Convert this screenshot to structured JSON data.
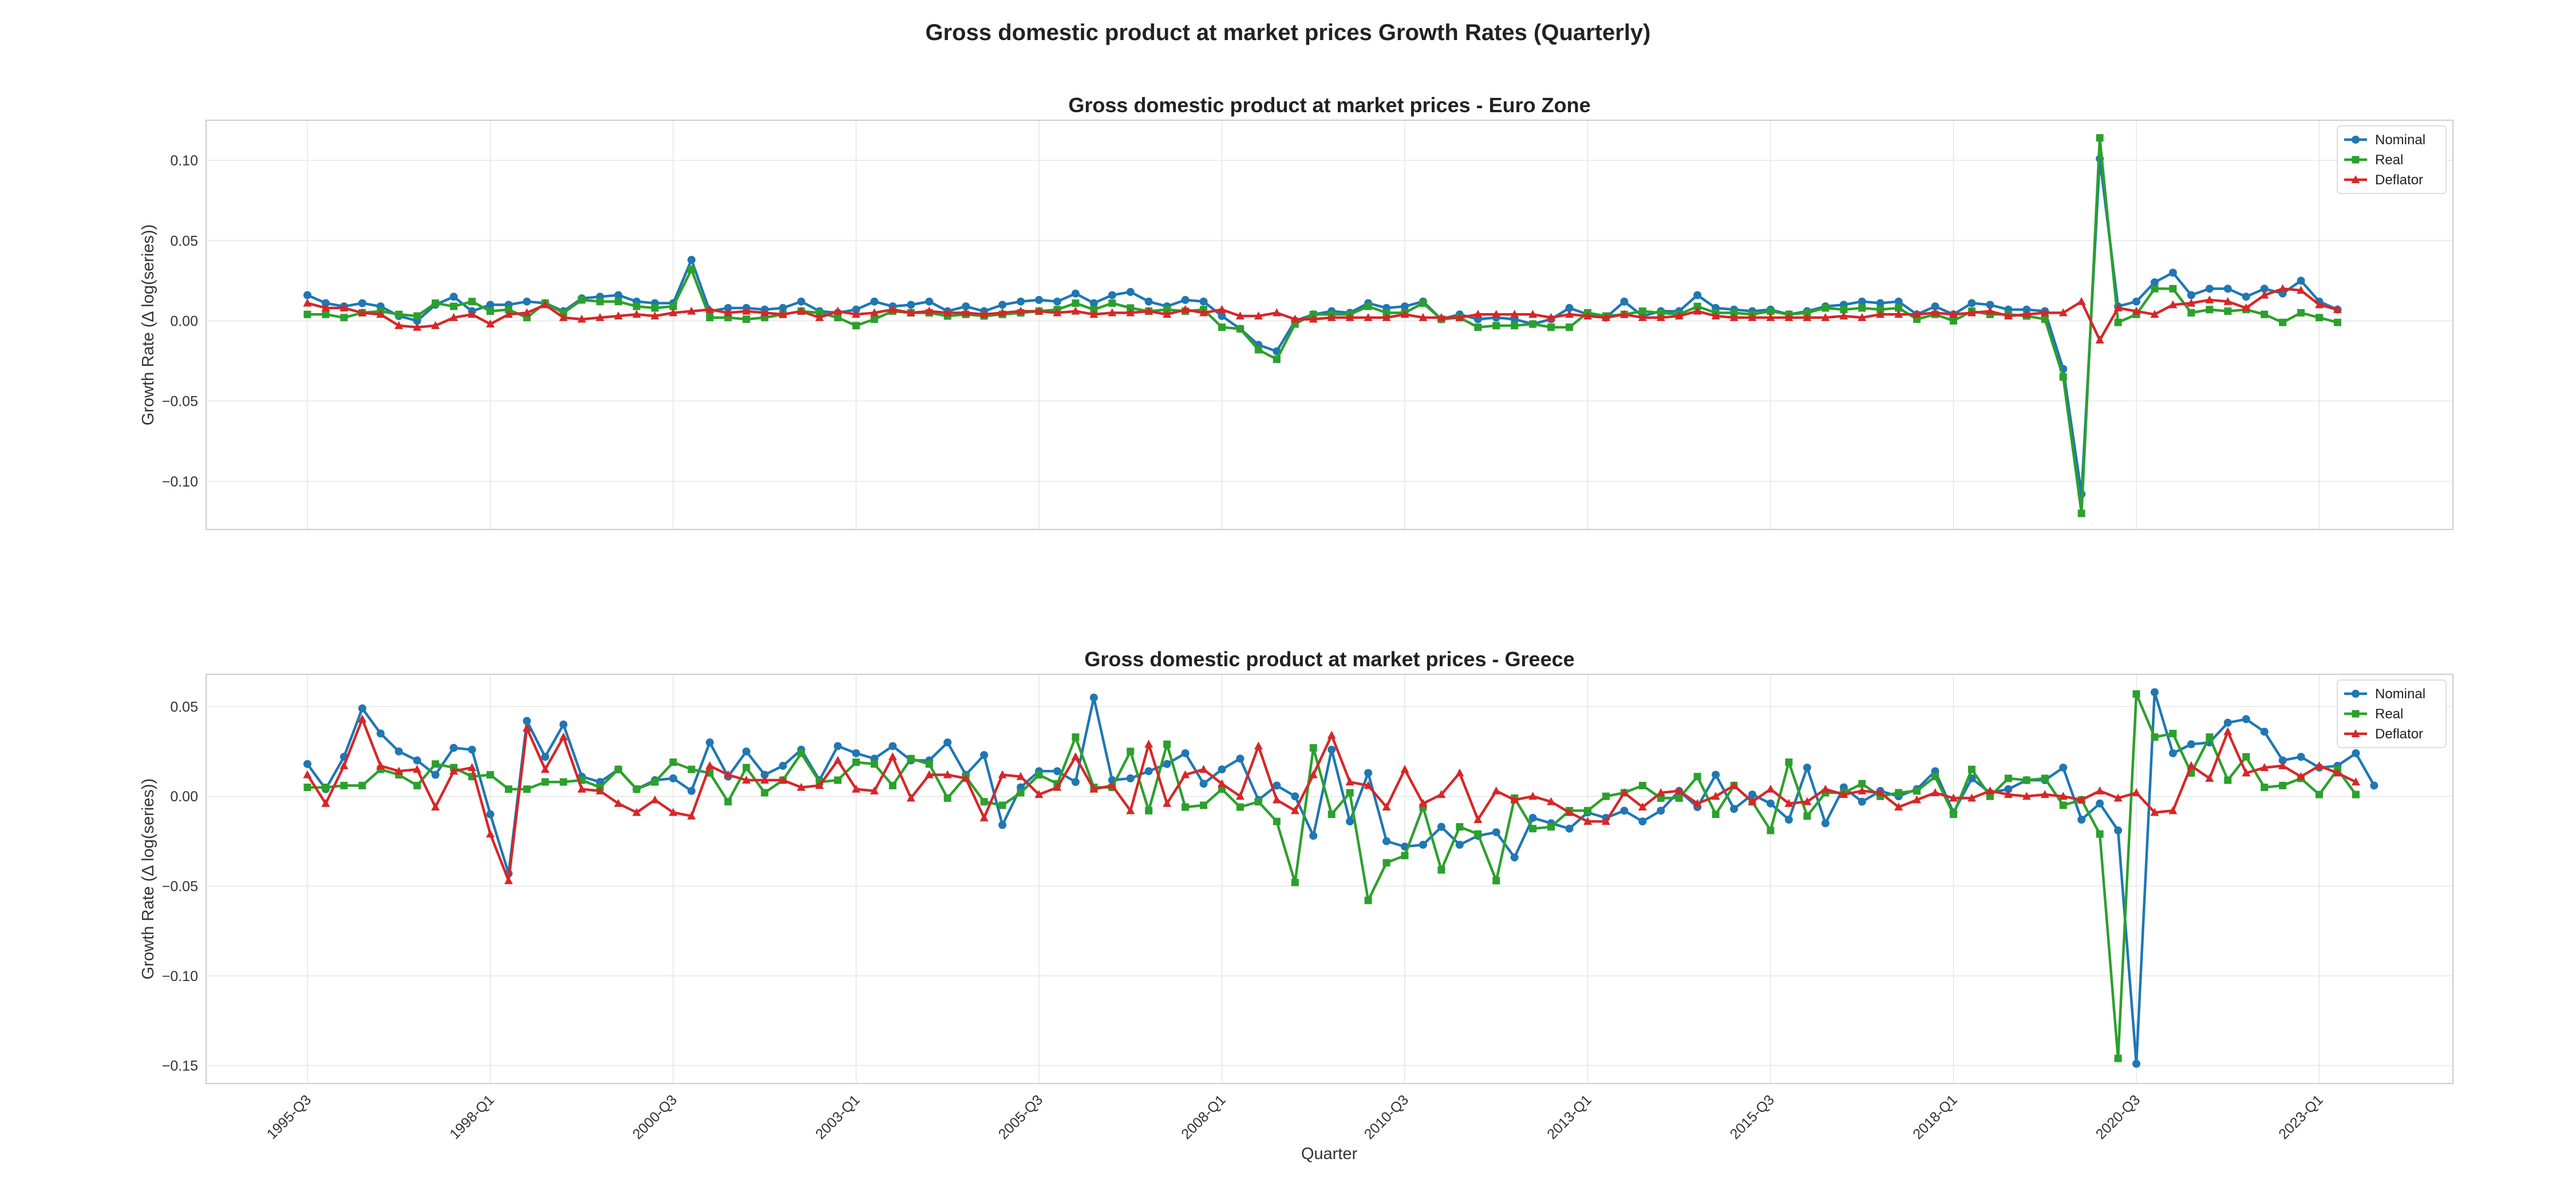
{
  "figure": {
    "title": "Gross domestic product at market prices Growth Rates (Quarterly)",
    "xlabel": "Quarter"
  },
  "colors": {
    "Nominal": "#1f77b4",
    "Real": "#2ca02c",
    "Deflator": "#d62728"
  },
  "chart_data": [
    {
      "type": "line",
      "title": "Gross domestic product at market prices - Euro Zone",
      "xlabel": "",
      "ylabel": "Growth Rate (Δ log(series))",
      "x_start": "1995-Q3",
      "x_tick_labels": [
        "1995-Q3",
        "1998-Q1",
        "2000-Q3",
        "2003-Q1",
        "2005-Q3",
        "2008-Q1",
        "2010-Q3",
        "2013-Q1",
        "2015-Q3",
        "2018-Q1",
        "2020-Q3",
        "2023-Q1"
      ],
      "ylim": [
        -0.13,
        0.125
      ],
      "y_ticks": [
        -0.1,
        -0.05,
        0.0,
        0.05,
        0.1
      ],
      "y_tick_labels": [
        "−0.10",
        "−0.05",
        "0.00",
        "0.05",
        "0.10"
      ],
      "grid": true,
      "legend": "top-right",
      "series": [
        {
          "name": "Nominal",
          "marker": "circle",
          "values": [
            0.016,
            0.011,
            0.009,
            0.011,
            0.009,
            0.003,
            0.0,
            0.01,
            0.015,
            0.006,
            0.01,
            0.01,
            0.012,
            0.011,
            0.006,
            0.014,
            0.015,
            0.016,
            0.012,
            0.011,
            0.011,
            0.038,
            0.006,
            0.008,
            0.008,
            0.007,
            0.008,
            0.012,
            0.006,
            0.005,
            0.007,
            0.012,
            0.009,
            0.01,
            0.012,
            0.006,
            0.009,
            0.006,
            0.01,
            0.012,
            0.013,
            0.012,
            0.017,
            0.011,
            0.016,
            0.018,
            0.012,
            0.009,
            0.013,
            0.012,
            0.003,
            -0.005,
            -0.015,
            -0.019,
            0.0,
            0.004,
            0.006,
            0.005,
            0.011,
            0.008,
            0.009,
            0.012,
            0.001,
            0.004,
            0.001,
            0.002,
            0.001,
            -0.002,
            0.001,
            0.008,
            0.004,
            0.002,
            0.012,
            0.003,
            0.006,
            0.006,
            0.016,
            0.008,
            0.007,
            0.006,
            0.007,
            0.004,
            0.006,
            0.009,
            0.01,
            0.012,
            0.011,
            0.012,
            0.004,
            0.009,
            0.004,
            0.011,
            0.01,
            0.007,
            0.007,
            0.006,
            -0.03,
            -0.108,
            0.101,
            0.009,
            0.012,
            0.024,
            0.03,
            0.016,
            0.02,
            0.02,
            0.015,
            0.02,
            0.017,
            0.025,
            0.012,
            0.007
          ]
        },
        {
          "name": "Real",
          "marker": "square",
          "values": [
            0.004,
            0.004,
            0.002,
            0.005,
            0.006,
            0.004,
            0.003,
            0.011,
            0.009,
            0.012,
            0.006,
            0.007,
            0.002,
            0.011,
            0.005,
            0.013,
            0.012,
            0.012,
            0.009,
            0.008,
            0.009,
            0.032,
            0.002,
            0.002,
            0.001,
            0.002,
            0.004,
            0.006,
            0.005,
            0.002,
            -0.003,
            0.001,
            0.006,
            0.005,
            0.005,
            0.003,
            0.004,
            0.003,
            0.004,
            0.005,
            0.006,
            0.007,
            0.011,
            0.007,
            0.011,
            0.008,
            0.006,
            0.007,
            0.006,
            0.007,
            -0.004,
            -0.005,
            -0.018,
            -0.024,
            -0.002,
            0.004,
            0.004,
            0.004,
            0.009,
            0.005,
            0.005,
            0.011,
            0.001,
            0.002,
            -0.004,
            -0.003,
            -0.003,
            -0.002,
            -0.004,
            -0.004,
            0.005,
            0.003,
            0.004,
            0.006,
            0.005,
            0.004,
            0.009,
            0.005,
            0.005,
            0.004,
            0.006,
            0.004,
            0.005,
            0.008,
            0.007,
            0.008,
            0.007,
            0.008,
            0.001,
            0.004,
            0.0,
            0.006,
            0.004,
            0.004,
            0.003,
            0.001,
            -0.035,
            -0.12,
            0.114,
            -0.001,
            0.004,
            0.02,
            0.02,
            0.005,
            0.007,
            0.006,
            0.007,
            0.004,
            -0.001,
            0.005,
            0.002,
            -0.001
          ]
        },
        {
          "name": "Deflator",
          "marker": "triangle",
          "values": [
            0.011,
            0.008,
            0.008,
            0.005,
            0.004,
            -0.003,
            -0.004,
            -0.003,
            0.002,
            0.004,
            -0.002,
            0.004,
            0.005,
            0.01,
            0.002,
            0.001,
            0.002,
            0.003,
            0.004,
            0.003,
            0.005,
            0.006,
            0.007,
            0.005,
            0.006,
            0.005,
            0.004,
            0.006,
            0.002,
            0.006,
            0.004,
            0.005,
            0.007,
            0.005,
            0.006,
            0.005,
            0.005,
            0.004,
            0.005,
            0.006,
            0.006,
            0.005,
            0.006,
            0.004,
            0.005,
            0.005,
            0.006,
            0.004,
            0.007,
            0.005,
            0.007,
            0.003,
            0.003,
            0.005,
            0.001,
            0.001,
            0.002,
            0.002,
            0.002,
            0.002,
            0.004,
            0.002,
            0.002,
            0.002,
            0.004,
            0.004,
            0.004,
            0.004,
            0.002,
            0.004,
            0.003,
            0.002,
            0.004,
            0.002,
            0.002,
            0.003,
            0.006,
            0.003,
            0.002,
            0.002,
            0.002,
            0.002,
            0.002,
            0.002,
            0.003,
            0.002,
            0.004,
            0.004,
            0.004,
            0.005,
            0.004,
            0.005,
            0.006,
            0.003,
            0.004,
            0.005,
            0.005,
            0.012,
            -0.012,
            0.008,
            0.006,
            0.004,
            0.01,
            0.011,
            0.013,
            0.012,
            0.008,
            0.016,
            0.02,
            0.019,
            0.01,
            0.007
          ]
        }
      ]
    },
    {
      "type": "line",
      "title": "Gross domestic product at market prices - Greece",
      "xlabel": "Quarter",
      "ylabel": "Growth Rate (Δ log(series))",
      "x_start": "1995-Q3",
      "x_tick_labels": [
        "1995-Q3",
        "1998-Q1",
        "2000-Q3",
        "2003-Q1",
        "2005-Q3",
        "2008-Q1",
        "2010-Q3",
        "2013-Q1",
        "2015-Q3",
        "2018-Q1",
        "2020-Q3",
        "2023-Q1"
      ],
      "ylim": [
        -0.16,
        0.068
      ],
      "y_ticks": [
        -0.15,
        -0.1,
        -0.05,
        0.0,
        0.05
      ],
      "y_tick_labels": [
        "−0.15",
        "−0.10",
        "−0.05",
        "0.00",
        "0.05"
      ],
      "grid": true,
      "legend": "top-right",
      "series": [
        {
          "name": "Nominal",
          "marker": "circle",
          "values": [
            0.018,
            0.004,
            0.022,
            0.049,
            0.035,
            0.025,
            0.02,
            0.012,
            0.027,
            0.026,
            -0.01,
            -0.043,
            0.042,
            0.022,
            0.04,
            0.011,
            0.008,
            0.015,
            0.004,
            0.009,
            0.01,
            0.003,
            0.03,
            0.011,
            0.025,
            0.012,
            0.017,
            0.026,
            0.009,
            0.028,
            0.024,
            0.021,
            0.028,
            0.02,
            0.02,
            0.03,
            0.012,
            0.023,
            -0.016,
            0.005,
            0.014,
            0.014,
            0.008,
            0.055,
            0.009,
            0.01,
            0.014,
            0.018,
            0.024,
            0.007,
            0.015,
            0.021,
            -0.002,
            0.006,
            0.0,
            -0.022,
            0.026,
            -0.014,
            0.013,
            -0.025,
            -0.028,
            -0.027,
            -0.017,
            -0.027,
            -0.022,
            -0.02,
            -0.034,
            -0.012,
            -0.015,
            -0.018,
            -0.009,
            -0.012,
            -0.008,
            -0.014,
            -0.008,
            0.003,
            -0.006,
            0.012,
            -0.007,
            0.001,
            -0.004,
            -0.013,
            0.016,
            -0.015,
            0.005,
            -0.003,
            0.003,
            0.0,
            0.004,
            0.014,
            -0.009,
            0.01,
            0.002,
            0.004,
            0.009,
            0.009,
            0.016,
            -0.013,
            -0.004,
            -0.019,
            -0.149,
            0.058,
            0.024,
            0.029,
            0.03,
            0.041,
            0.043,
            0.036,
            0.02,
            0.022,
            0.016,
            0.017,
            0.024,
            0.006
          ]
        },
        {
          "name": "Real",
          "marker": "square",
          "values": [
            0.005,
            0.005,
            0.006,
            0.006,
            0.015,
            0.012,
            0.006,
            0.018,
            0.016,
            0.011,
            0.012,
            0.004,
            0.004,
            0.008,
            0.008,
            0.009,
            0.005,
            0.015,
            0.004,
            0.008,
            0.019,
            0.015,
            0.013,
            -0.003,
            0.016,
            0.002,
            0.009,
            0.024,
            0.008,
            0.009,
            0.019,
            0.018,
            0.006,
            0.021,
            0.018,
            -0.001,
            0.011,
            -0.003,
            -0.005,
            0.002,
            0.012,
            0.007,
            0.033,
            0.005,
            0.005,
            0.025,
            -0.008,
            0.029,
            -0.006,
            -0.005,
            0.004,
            -0.006,
            -0.003,
            -0.014,
            -0.048,
            0.027,
            -0.01,
            0.002,
            -0.058,
            -0.037,
            -0.033,
            -0.006,
            -0.041,
            -0.017,
            -0.021,
            -0.047,
            -0.001,
            -0.018,
            -0.017,
            -0.008,
            -0.008,
            0.0,
            0.002,
            0.006,
            -0.001,
            -0.001,
            0.011,
            -0.01,
            0.006,
            -0.003,
            -0.019,
            0.019,
            -0.011,
            0.002,
            0.002,
            0.007,
            0.0,
            0.002,
            0.003,
            0.011,
            -0.01,
            0.015,
            0.0,
            0.01,
            0.009,
            0.01,
            -0.005,
            -0.002,
            -0.021,
            -0.146,
            0.057,
            0.033,
            0.035,
            0.013,
            0.033,
            0.009,
            0.022,
            0.005,
            0.006,
            0.01,
            0.001,
            0.015,
            0.001
          ]
        },
        {
          "name": "Deflator",
          "marker": "triangle",
          "values": [
            0.012,
            -0.004,
            0.017,
            0.043,
            0.017,
            0.014,
            0.015,
            -0.006,
            0.014,
            0.016,
            -0.021,
            -0.047,
            0.038,
            0.015,
            0.033,
            0.004,
            0.003,
            -0.004,
            -0.009,
            -0.002,
            -0.009,
            -0.011,
            0.017,
            0.012,
            0.009,
            0.009,
            0.009,
            0.005,
            0.006,
            0.02,
            0.004,
            0.003,
            0.022,
            -0.001,
            0.012,
            0.012,
            0.01,
            -0.012,
            0.012,
            0.011,
            0.001,
            0.005,
            0.022,
            0.004,
            0.006,
            -0.008,
            0.029,
            -0.004,
            0.012,
            0.015,
            0.007,
            0.0,
            0.028,
            -0.002,
            -0.008,
            0.012,
            0.034,
            0.008,
            0.006,
            -0.006,
            0.015,
            -0.004,
            0.001,
            0.013,
            -0.013,
            0.003,
            -0.002,
            0.0,
            -0.003,
            -0.009,
            -0.014,
            -0.014,
            0.002,
            -0.006,
            0.002,
            0.003,
            -0.004,
            0.0,
            0.006,
            -0.003,
            0.004,
            -0.004,
            -0.003,
            0.004,
            0.001,
            0.003,
            0.002,
            -0.006,
            -0.002,
            0.002,
            -0.001,
            -0.001,
            0.003,
            0.001,
            0.0,
            0.001,
            0.0,
            -0.002,
            0.003,
            -0.001,
            0.002,
            -0.009,
            -0.008,
            0.017,
            0.01,
            0.036,
            0.013,
            0.016,
            0.017,
            0.011,
            0.017,
            0.013,
            0.008
          ]
        }
      ]
    }
  ]
}
